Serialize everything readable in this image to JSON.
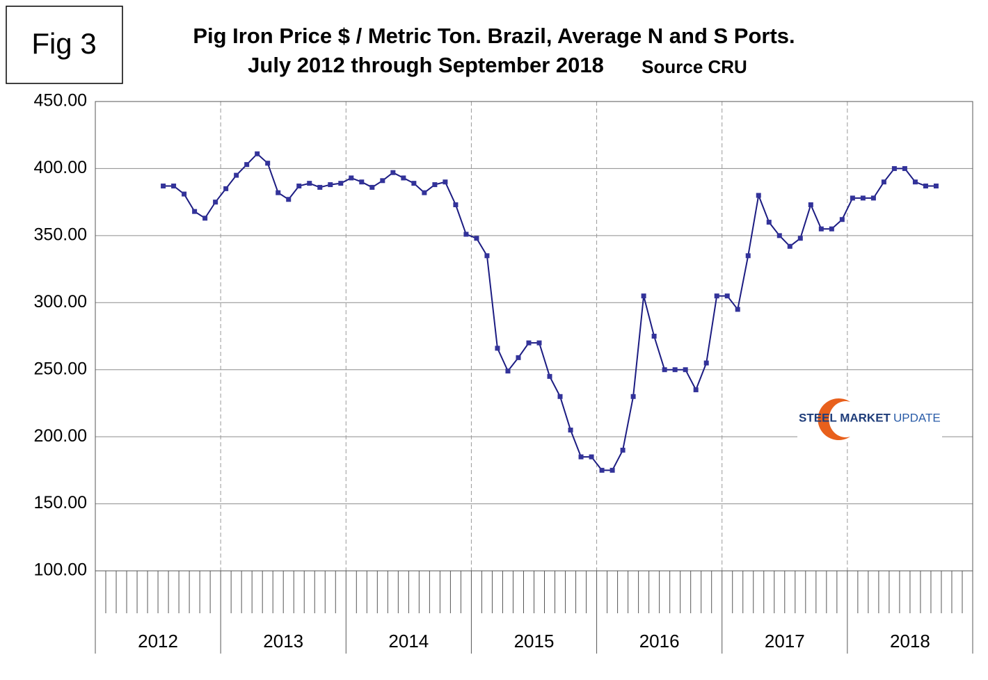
{
  "fig_label": "Fig 3",
  "chart_data": {
    "type": "line",
    "title": "Pig Iron Price $ / Metric Ton. Brazil, Average N and S Ports.",
    "subtitle": "July 2012 through September 2018",
    "source": "Source CRU",
    "x": [
      "2012",
      "2012",
      "2012",
      "2012",
      "2012",
      "2012",
      "2013",
      "2013",
      "2013",
      "2013",
      "2013",
      "2013",
      "2013",
      "2013",
      "2013",
      "2013",
      "2013",
      "2013",
      "2014",
      "2014",
      "2014",
      "2014",
      "2014",
      "2014",
      "2014",
      "2014",
      "2014",
      "2014",
      "2014",
      "2014",
      "2015",
      "2015",
      "2015",
      "2015",
      "2015",
      "2015",
      "2015",
      "2015",
      "2015",
      "2015",
      "2015",
      "2015",
      "2016",
      "2016",
      "2016",
      "2016",
      "2016",
      "2016",
      "2016",
      "2016",
      "2016",
      "2016",
      "2016",
      "2016",
      "2017",
      "2017",
      "2017",
      "2017",
      "2017",
      "2017",
      "2017",
      "2017",
      "2017",
      "2017",
      "2017",
      "2017",
      "2018",
      "2018",
      "2018",
      "2018",
      "2018",
      "2018",
      "2018",
      "2018",
      "2018"
    ],
    "values": [
      387,
      387,
      381,
      368,
      363,
      375,
      385,
      395,
      403,
      411,
      404,
      382,
      377,
      387,
      389,
      386,
      388,
      389,
      393,
      390,
      386,
      391,
      397,
      393,
      389,
      382,
      388,
      390,
      373,
      351,
      348,
      335,
      266,
      249,
      259,
      270,
      270,
      245,
      230,
      205,
      185,
      185,
      175,
      175,
      190,
      230,
      305,
      275,
      250,
      250,
      250,
      235,
      255,
      305,
      305,
      295,
      335,
      380,
      360,
      350,
      342,
      348,
      373,
      355,
      355,
      362,
      378,
      378,
      378,
      390,
      400,
      400,
      390,
      387,
      387
    ],
    "color": "#1c1c82",
    "marker_color": "#33339a",
    "ylim": [
      100,
      450
    ],
    "yticks": [
      {
        "value": 100,
        "label": "100.00"
      },
      {
        "value": 150,
        "label": "150.00"
      },
      {
        "value": 200,
        "label": "200.00"
      },
      {
        "value": 250,
        "label": "250.00"
      },
      {
        "value": 300,
        "label": "300.00"
      },
      {
        "value": 350,
        "label": "350.00"
      },
      {
        "value": 400,
        "label": "400.00"
      },
      {
        "value": 450,
        "label": "450.00"
      }
    ],
    "grid": true
  },
  "logo": {
    "bold": "STEEL MARKET",
    "light": "UPDATE"
  }
}
